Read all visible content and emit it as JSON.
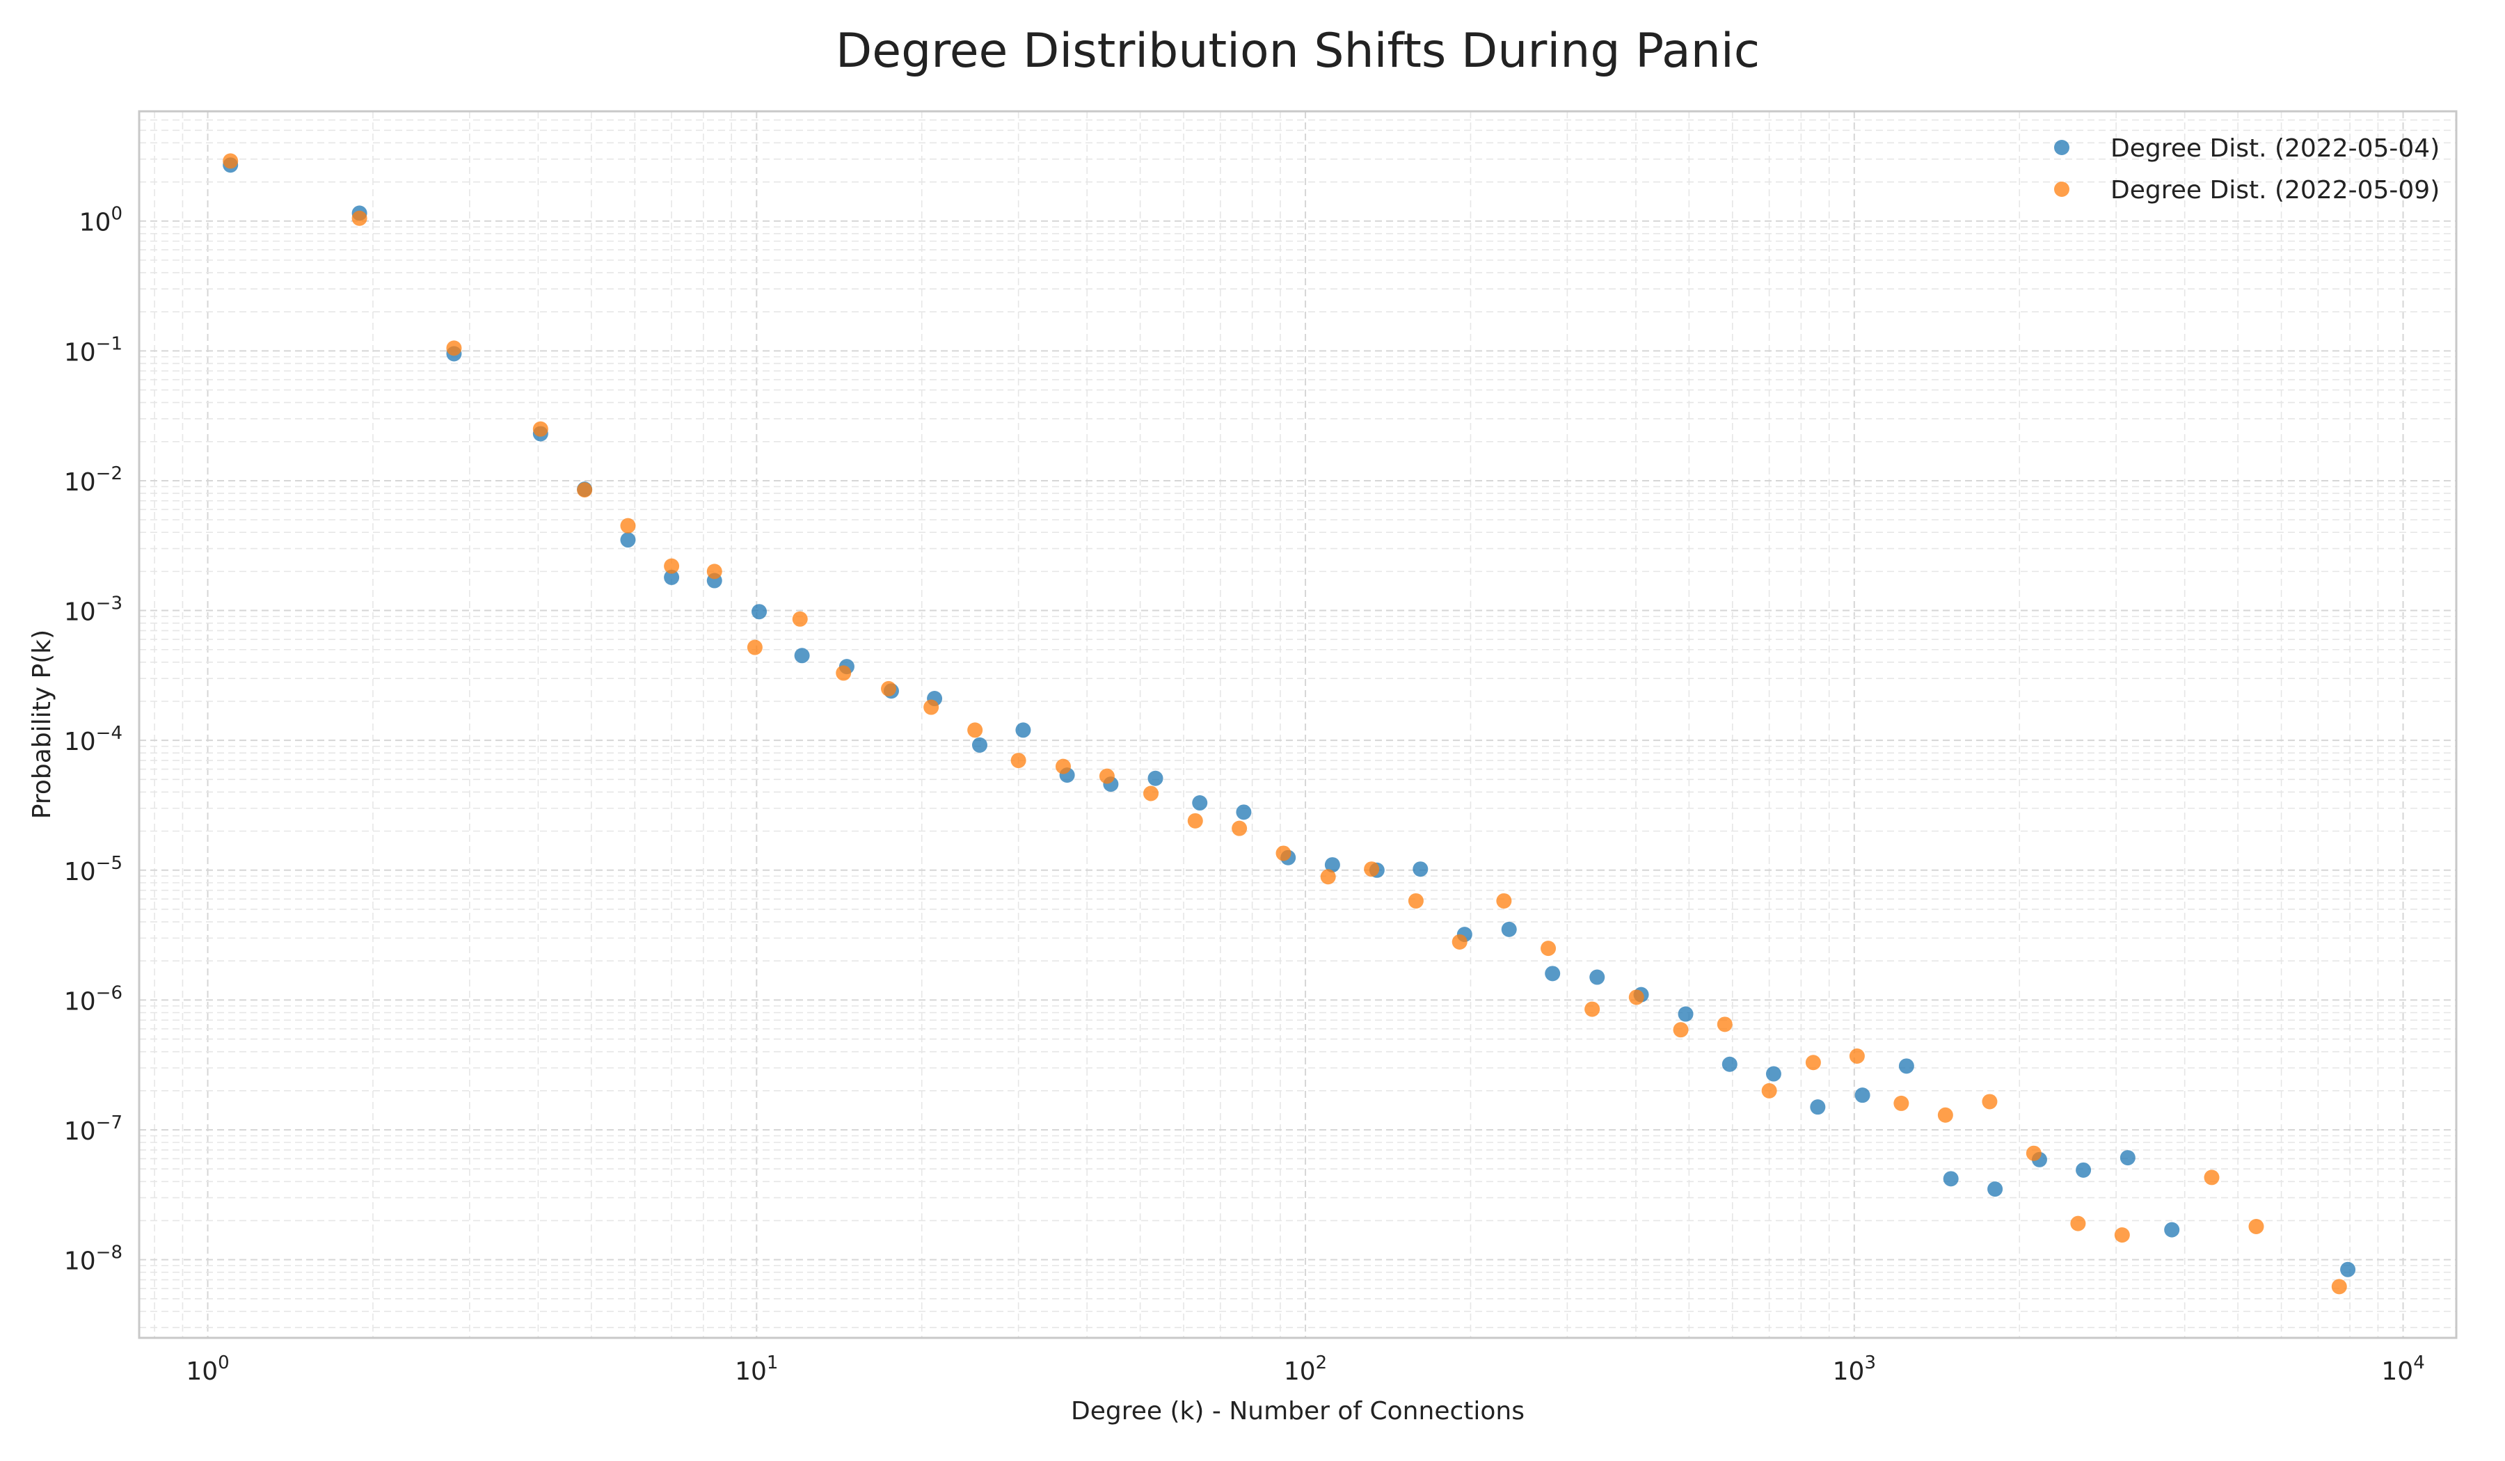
{
  "chart_data": {
    "type": "scatter",
    "title": "Degree Distribution Shifts During Panic",
    "xlabel": "Degree (k) - Number of Connections",
    "ylabel": "Probability P(k)",
    "xscale": "log",
    "yscale": "log",
    "xlim": [
      0.75,
      12500
    ],
    "ylim": [
      2.5e-09,
      7.0
    ],
    "x_ticks": [
      {
        "value": 1,
        "label": "10",
        "exp": "0"
      },
      {
        "value": 10,
        "label": "10",
        "exp": "1"
      },
      {
        "value": 100,
        "label": "10",
        "exp": "2"
      },
      {
        "value": 1000,
        "label": "10",
        "exp": "3"
      },
      {
        "value": 10000,
        "label": "10",
        "exp": "4"
      }
    ],
    "y_ticks": [
      {
        "value": 1e-08,
        "label": "10",
        "exp": "−8"
      },
      {
        "value": 1e-07,
        "label": "10",
        "exp": "−7"
      },
      {
        "value": 1e-06,
        "label": "10",
        "exp": "−6"
      },
      {
        "value": 1e-05,
        "label": "10",
        "exp": "−5"
      },
      {
        "value": 0.0001,
        "label": "10",
        "exp": "−4"
      },
      {
        "value": 0.001,
        "label": "10",
        "exp": "−3"
      },
      {
        "value": 0.01,
        "label": "10",
        "exp": "−2"
      },
      {
        "value": 0.1,
        "label": "10",
        "exp": "−1"
      },
      {
        "value": 1,
        "label": "10",
        "exp": "0"
      }
    ],
    "grid": true,
    "legend_position": "top-right",
    "series": [
      {
        "name": "Degree Dist. (2022-05-04)",
        "color": "#1f77b4",
        "points": [
          [
            1.1,
            2.7
          ],
          [
            1.89,
            1.15
          ],
          [
            2.81,
            0.095
          ],
          [
            4.04,
            0.023
          ],
          [
            4.86,
            0.0086
          ],
          [
            5.83,
            0.0035
          ],
          [
            7.0,
            0.0018
          ],
          [
            8.38,
            0.0017
          ],
          [
            10.11,
            0.00098
          ],
          [
            12.1,
            0.00045
          ],
          [
            14.6,
            0.00037
          ],
          [
            17.6,
            0.00024
          ],
          [
            21.1,
            0.00021
          ],
          [
            25.5,
            9.2e-05
          ],
          [
            30.6,
            0.00012
          ],
          [
            36.8,
            5.4e-05
          ],
          [
            44.2,
            4.6e-05
          ],
          [
            53.3,
            5.1e-05
          ],
          [
            64.2,
            3.3e-05
          ],
          [
            77.2,
            2.8e-05
          ],
          [
            93.0,
            1.25e-05
          ],
          [
            112,
            1.1e-05
          ],
          [
            135,
            1e-05
          ],
          [
            162,
            1.02e-05
          ],
          [
            195,
            3.2e-06
          ],
          [
            235,
            3.5e-06
          ],
          [
            282,
            1.6e-06
          ],
          [
            340,
            1.5e-06
          ],
          [
            409,
            1.1e-06
          ],
          [
            493,
            7.8e-07
          ],
          [
            593,
            3.2e-07
          ],
          [
            713,
            2.7e-07
          ],
          [
            858,
            1.5e-07
          ],
          [
            1035,
            1.85e-07
          ],
          [
            1245,
            3.1e-07
          ],
          [
            1500,
            4.2e-08
          ],
          [
            1805,
            3.5e-08
          ],
          [
            2175,
            5.9e-08
          ],
          [
            2615,
            4.9e-08
          ],
          [
            3150,
            6.1e-08
          ],
          [
            3790,
            1.7e-08
          ],
          [
            7930,
            8.4e-09
          ]
        ]
      },
      {
        "name": "Degree Dist. (2022-05-09)",
        "color": "#ff7f0e",
        "points": [
          [
            1.1,
            2.9
          ],
          [
            1.89,
            1.05
          ],
          [
            2.81,
            0.105
          ],
          [
            4.04,
            0.025
          ],
          [
            4.86,
            0.0085
          ],
          [
            5.83,
            0.0045
          ],
          [
            7.0,
            0.0022
          ],
          [
            8.38,
            0.002
          ],
          [
            9.93,
            0.00052
          ],
          [
            12.0,
            0.00086
          ],
          [
            14.4,
            0.00033
          ],
          [
            17.4,
            0.00025
          ],
          [
            20.8,
            0.00018
          ],
          [
            25.0,
            0.00012
          ],
          [
            30.0,
            7e-05
          ],
          [
            36.2,
            6.3e-05
          ],
          [
            43.5,
            5.3e-05
          ],
          [
            52.3,
            3.9e-05
          ],
          [
            63.0,
            2.4e-05
          ],
          [
            75.8,
            2.1e-05
          ],
          [
            91.2,
            1.35e-05
          ],
          [
            110,
            8.9e-06
          ],
          [
            132,
            1.02e-05
          ],
          [
            159,
            5.8e-06
          ],
          [
            191,
            2.8e-06
          ],
          [
            230,
            5.8e-06
          ],
          [
            277,
            2.5e-06
          ],
          [
            333,
            8.5e-07
          ],
          [
            401,
            1.05e-06
          ],
          [
            483,
            5.9e-07
          ],
          [
            581,
            6.5e-07
          ],
          [
            700,
            2e-07
          ],
          [
            842,
            3.3e-07
          ],
          [
            1012,
            3.7e-07
          ],
          [
            1218,
            1.6e-07
          ],
          [
            1466,
            1.3e-07
          ],
          [
            1765,
            1.65e-07
          ],
          [
            2124,
            6.6e-08
          ],
          [
            2557,
            1.9e-08
          ],
          [
            3077,
            1.55e-08
          ],
          [
            4480,
            4.3e-08
          ],
          [
            5400,
            1.8e-08
          ],
          [
            7650,
            6.2e-09
          ]
        ]
      }
    ]
  }
}
